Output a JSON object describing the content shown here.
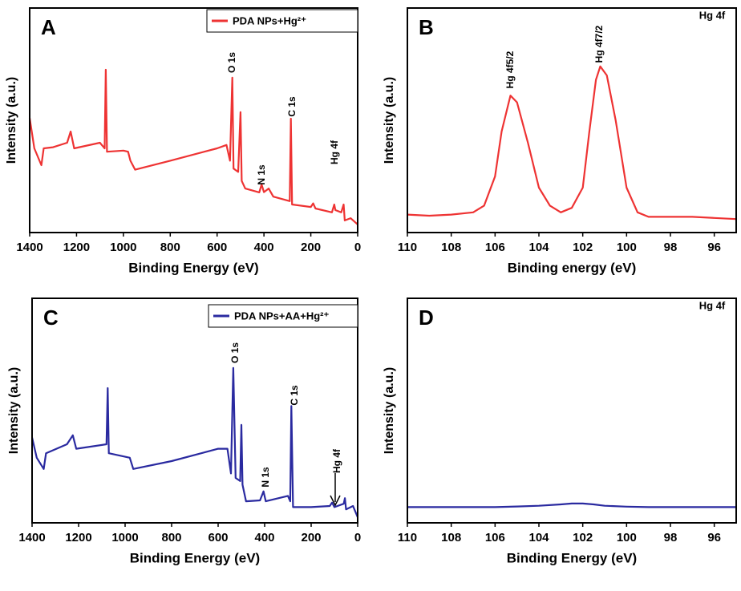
{
  "chart_data": [
    {
      "type": "line",
      "panel": "A",
      "xlabel": "Binding Energy (eV)",
      "ylabel": "Intensity (a.u.)",
      "xlim": [
        1400,
        0
      ],
      "xticks": [
        1400,
        1200,
        1000,
        800,
        600,
        400,
        200,
        0
      ],
      "ylim": [
        0,
        100
      ],
      "x": [
        1400,
        1380,
        1350,
        1340,
        1300,
        1240,
        1225,
        1210,
        1100,
        1080,
        1075,
        1070,
        1000,
        980,
        970,
        950,
        800,
        600,
        560,
        545,
        535,
        530,
        510,
        500,
        495,
        480,
        420,
        410,
        400,
        380,
        360,
        290,
        285,
        280,
        200,
        190,
        180,
        110,
        100,
        95,
        70,
        60,
        55,
        30,
        0
      ],
      "series": [
        {
          "name": "PDA NPs+Hg²⁺",
          "color": "#ee3333",
          "values": [
            51,
            37.5,
            30,
            37.5,
            38,
            40,
            45,
            37.5,
            40,
            37.5,
            72.5,
            36,
            36.5,
            36,
            32,
            28,
            32,
            37.5,
            39,
            32,
            69,
            28.5,
            27,
            53.6,
            23,
            19.6,
            17.9,
            21.4,
            18,
            19.6,
            16,
            14,
            50.7,
            12.5,
            11.4,
            13,
            10.7,
            9,
            12.5,
            10,
            9,
            12.5,
            5.4,
            6.4,
            3.6
          ]
        }
      ],
      "annotations": [
        "O 1s",
        "C 1s",
        "N 1s",
        "Hg 4f"
      ]
    },
    {
      "type": "line",
      "panel": "B",
      "xlabel": "Binding energy (eV)",
      "ylabel": "Intensity (a.u.)",
      "corner_label": "Hg 4f",
      "xlim": [
        110,
        95
      ],
      "xticks": [
        110,
        108,
        106,
        104,
        102,
        100,
        98,
        96
      ],
      "ylim": [
        0,
        100
      ],
      "x": [
        110,
        109,
        108,
        107,
        106.5,
        106,
        105.7,
        105.3,
        105,
        104.5,
        104,
        103.5,
        103,
        102.5,
        102,
        101.7,
        101.4,
        101.2,
        100.9,
        100.5,
        100,
        99.5,
        99,
        98,
        97,
        96,
        95
      ],
      "series": [
        {
          "color": "#ee3333",
          "values": [
            8,
            7.5,
            8,
            9,
            12,
            25,
            45,
            61,
            58,
            40,
            20,
            12,
            9,
            11,
            20,
            45,
            68,
            74,
            70,
            50,
            20,
            9,
            7,
            7,
            7,
            6.5,
            6
          ]
        }
      ],
      "annotations": [
        "Hg 4f5/2",
        "Hg 4f7/2"
      ]
    },
    {
      "type": "line",
      "panel": "C",
      "xlabel": "Binding Energy (eV)",
      "ylabel": "Intensity (a.u.)",
      "xlim": [
        1400,
        0
      ],
      "xticks": [
        1400,
        1200,
        1000,
        800,
        600,
        400,
        200,
        0
      ],
      "ylim": [
        0,
        100
      ],
      "x": [
        1400,
        1380,
        1350,
        1340,
        1250,
        1225,
        1210,
        1080,
        1075,
        1070,
        980,
        965,
        800,
        600,
        560,
        545,
        535,
        525,
        505,
        500,
        495,
        480,
        420,
        405,
        395,
        300,
        290,
        285,
        278,
        200,
        120,
        110,
        100,
        60,
        55,
        50,
        20,
        0
      ],
      "series": [
        {
          "name": "PDA NPs+AA+Hg²⁺",
          "color": "#2a2aa0",
          "values": [
            38,
            29,
            24,
            31,
            35,
            39,
            33,
            35,
            60,
            31,
            29,
            24,
            27.5,
            33,
            33,
            22,
            69,
            20,
            18.6,
            43.6,
            17,
            9.6,
            10,
            14,
            9.6,
            12,
            9.6,
            52,
            7,
            7,
            7.5,
            9,
            7,
            8.5,
            11,
            6,
            7.5,
            2.5
          ]
        }
      ],
      "annotations": [
        "O 1s",
        "C 1s",
        "N 1s",
        "Hg 4f"
      ]
    },
    {
      "type": "line",
      "panel": "D",
      "xlabel": "Binding Energy (eV)",
      "ylabel": "Intensity (a.u.)",
      "corner_label": "Hg 4f",
      "xlim": [
        110,
        95
      ],
      "xticks": [
        110,
        108,
        106,
        104,
        102,
        100,
        98,
        96
      ],
      "ylim": [
        0,
        100
      ],
      "x": [
        110,
        109,
        108,
        107,
        106,
        105,
        104,
        103,
        102.5,
        102,
        101.5,
        101,
        100,
        99,
        98,
        97,
        96,
        95
      ],
      "series": [
        {
          "color": "#2a2aa0",
          "values": [
            7,
            7,
            7,
            7,
            7,
            7.3,
            7.6,
            8.2,
            8.6,
            8.6,
            8.2,
            7.6,
            7.2,
            7,
            7,
            7,
            7,
            7
          ]
        }
      ]
    }
  ]
}
